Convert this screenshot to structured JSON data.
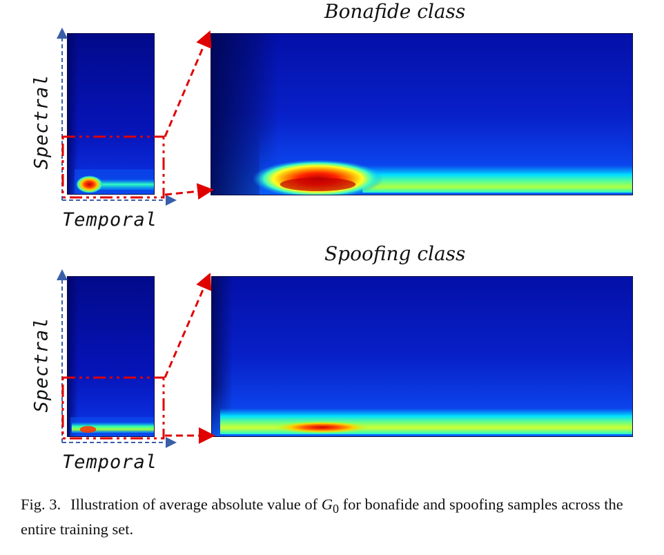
{
  "panels": [
    {
      "title": "Bonafide class",
      "y_label": "Spectral",
      "x_label": "Temporal"
    },
    {
      "title": "Spoofing class",
      "y_label": "Spectral",
      "x_label": "Temporal"
    }
  ],
  "caption": {
    "figure_label": "Fig. 3.",
    "text_before": "Illustration of average absolute value of ",
    "math_symbol": "G",
    "math_subscript": "0",
    "text_after": " for bonafide and spoofing samples across the entire training set."
  },
  "colors": {
    "heatmap_background": "#0a10b8",
    "heatmap_dark": "#02086e",
    "hot": "#d00000",
    "annotation_red": "#e00000",
    "axis_blue": "#3a5ea8"
  }
}
